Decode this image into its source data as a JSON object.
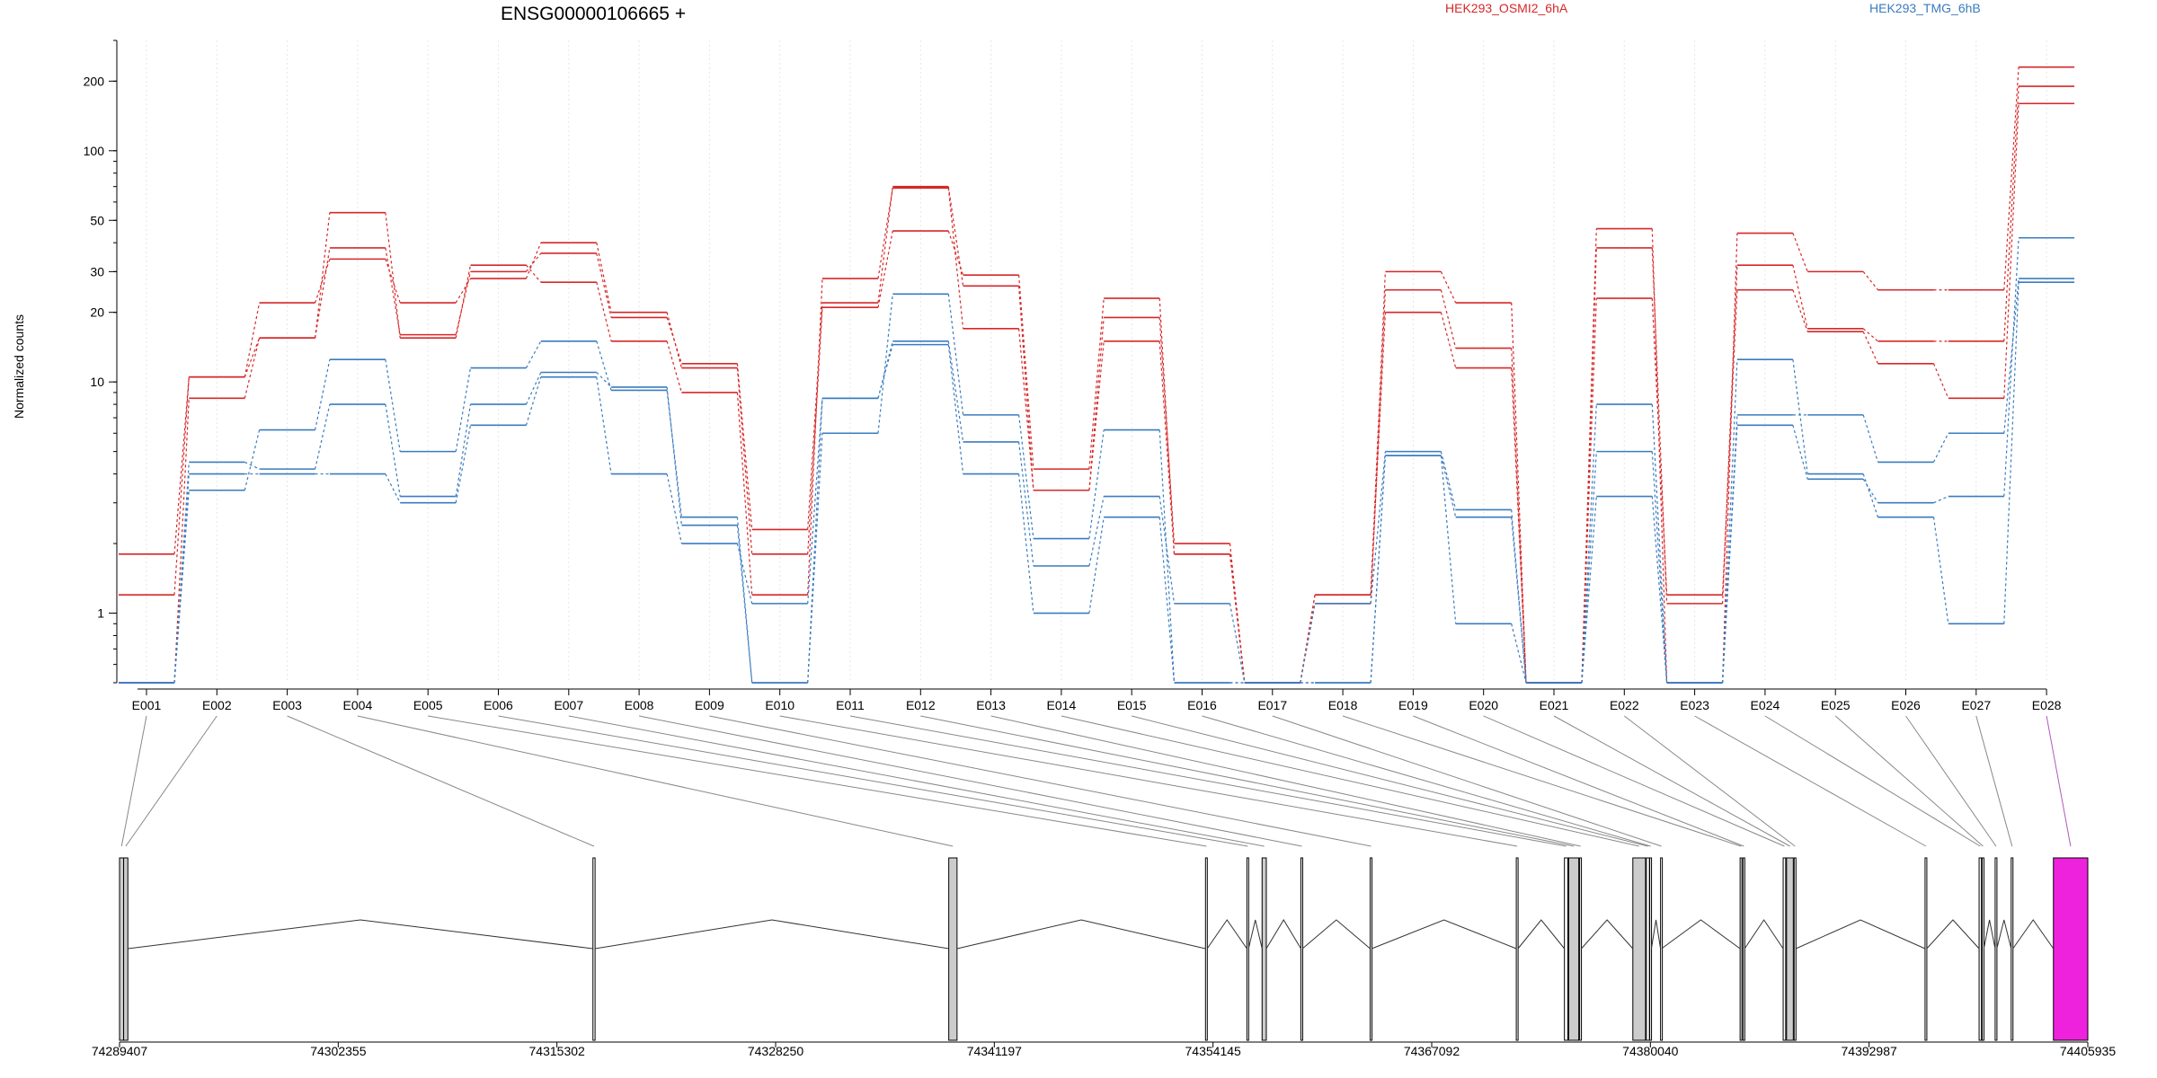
{
  "chart_data": {
    "type": "line",
    "title": "ENSG00000106665 +",
    "ylabel": "Normalized counts",
    "yscale": "log",
    "ylim": [
      0.5,
      300
    ],
    "y_ticks": [
      1,
      10,
      20,
      30,
      50,
      100,
      200
    ],
    "y_tick_labels": [
      "1",
      "10",
      "20",
      "30",
      "50",
      "100",
      "200"
    ],
    "legend_placement": "top",
    "colors": {
      "HEK293_OSMI2_6hA": "#d62728",
      "HEK293_TMG_6hB": "#3a7bbf",
      "highlight_exon": "#ee22dd"
    },
    "categories": [
      "E001",
      "E002",
      "E003",
      "E004",
      "E005",
      "E006",
      "E007",
      "E008",
      "E009",
      "E010",
      "E011",
      "E012",
      "E013",
      "E014",
      "E015",
      "E016",
      "E017",
      "E018",
      "E019",
      "E020",
      "E021",
      "E022",
      "E023",
      "E024",
      "E025",
      "E026",
      "E027",
      "E028"
    ],
    "series": [
      {
        "name": "HEK293_OSMI2_6hA",
        "group": "HEK293_OSMI2_6hA",
        "values": [
          1.8,
          10.5,
          15.5,
          38,
          16,
          30,
          36,
          19,
          12,
          2.3,
          22,
          70,
          26,
          3.4,
          19,
          2.0,
          0.5,
          1.1,
          25,
          14,
          0.5,
          38,
          1.1,
          32,
          17,
          15,
          15,
          190
        ]
      },
      {
        "name": "HEK293_OSMI2_6hA",
        "group": "HEK293_OSMI2_6hA",
        "values": [
          1.2,
          10.5,
          22,
          34,
          22,
          28,
          40,
          20,
          11.5,
          1.8,
          21,
          45,
          29,
          4.2,
          23,
          1.8,
          0.5,
          1.2,
          30,
          22,
          0.5,
          46,
          0.5,
          44,
          30,
          25,
          25,
          230
        ]
      },
      {
        "name": "HEK293_OSMI2_6hA",
        "group": "HEK293_OSMI2_6hA",
        "values": [
          0.5,
          8.5,
          15.5,
          54,
          15.5,
          32,
          27,
          15,
          9,
          1.2,
          28,
          69,
          17,
          3.4,
          15,
          1.8,
          0.5,
          1.2,
          20,
          11.5,
          0.5,
          23,
          1.2,
          25,
          16.5,
          12,
          8.5,
          160
        ]
      },
      {
        "name": "HEK293_TMG_6hB",
        "group": "HEK293_TMG_6hB",
        "values": [
          0.5,
          4.0,
          4.0,
          4.0,
          3.0,
          6.5,
          10.5,
          4.0,
          2.0,
          1.1,
          8.5,
          15,
          5.5,
          1.6,
          3.2,
          1.1,
          0.5,
          0.5,
          4.8,
          0.9,
          0.5,
          8.0,
          0.5,
          12.5,
          4.0,
          2.6,
          0.9,
          27
        ]
      },
      {
        "name": "HEK293_TMG_6hB",
        "group": "HEK293_TMG_6hB",
        "values": [
          0.5,
          3.4,
          6.2,
          12.5,
          5.0,
          11.5,
          15,
          9.2,
          2.6,
          0.5,
          6.0,
          24,
          7.2,
          2.1,
          6.2,
          0.5,
          0.5,
          1.1,
          5.0,
          2.8,
          0.5,
          5.0,
          0.5,
          7.2,
          7.2,
          4.5,
          6.0,
          28
        ]
      },
      {
        "name": "HEK293_TMG_6hB",
        "group": "HEK293_TMG_6hB",
        "values": [
          0.5,
          4.5,
          4.2,
          8.0,
          3.2,
          8.0,
          11,
          9.5,
          2.4,
          0.5,
          8.5,
          14.5,
          4.0,
          1.0,
          2.6,
          0.5,
          0.5,
          0.5,
          4.8,
          2.6,
          0.5,
          3.2,
          0.5,
          6.5,
          3.8,
          3.0,
          3.2,
          42
        ]
      }
    ],
    "legend": [
      "HEK293_OSMI2_6hA",
      "HEK293_TMG_6hB"
    ],
    "gene_model": {
      "coordinate_ticks": [
        "74289407",
        "74302355",
        "74315302",
        "74328250",
        "74341197",
        "74354145",
        "74367092",
        "74380040",
        "74392987",
        "74405935"
      ],
      "coordinate_tick_values": [
        74289407,
        74302355,
        74315302,
        74328250,
        74341197,
        74354145,
        74367092,
        74380040,
        74392987,
        74405935
      ],
      "x_range": [
        74289407,
        74405935
      ],
      "exons": [
        {
          "id": "E001",
          "start": 74289407,
          "end": 74289650
        },
        {
          "id": "E002",
          "start": 74289650,
          "end": 74289900
        },
        {
          "id": "E003",
          "start": 74317435,
          "end": 74317560
        },
        {
          "id": "E004",
          "start": 74338500,
          "end": 74338990
        },
        {
          "id": "E005",
          "start": 74353700,
          "end": 74353800
        },
        {
          "id": "E006",
          "start": 74356150,
          "end": 74356250
        },
        {
          "id": "E007",
          "start": 74357050,
          "end": 74357300
        },
        {
          "id": "E008",
          "start": 74359350,
          "end": 74359440
        },
        {
          "id": "E009",
          "start": 74363450,
          "end": 74363540
        },
        {
          "id": "E010",
          "start": 74372100,
          "end": 74372200
        },
        {
          "id": "E011",
          "start": 74374950,
          "end": 74375150
        },
        {
          "id": "E012",
          "start": 74375200,
          "end": 74375800
        },
        {
          "id": "E013",
          "start": 74375850,
          "end": 74375950
        },
        {
          "id": "E014",
          "start": 74379000,
          "end": 74379750
        },
        {
          "id": "E015",
          "start": 74379800,
          "end": 74379980
        },
        {
          "id": "E016",
          "start": 74380000,
          "end": 74380100
        },
        {
          "id": "E017",
          "start": 74380640,
          "end": 74380700
        },
        {
          "id": "E018",
          "start": 74385350,
          "end": 74385450
        },
        {
          "id": "E019",
          "start": 74385520,
          "end": 74385620
        },
        {
          "id": "E020",
          "start": 74387900,
          "end": 74388050
        },
        {
          "id": "E021",
          "start": 74388100,
          "end": 74388500
        },
        {
          "id": "E022",
          "start": 74388550,
          "end": 74388650
        },
        {
          "id": "E023",
          "start": 74396300,
          "end": 74396400
        },
        {
          "id": "E024",
          "start": 74399500,
          "end": 74399640
        },
        {
          "id": "E025",
          "start": 74399680,
          "end": 74399780
        },
        {
          "id": "E026",
          "start": 74400450,
          "end": 74400550
        },
        {
          "id": "E027",
          "start": 74401400,
          "end": 74401500
        },
        {
          "id": "E028",
          "start": 74403900,
          "end": 74405935
        }
      ]
    }
  }
}
